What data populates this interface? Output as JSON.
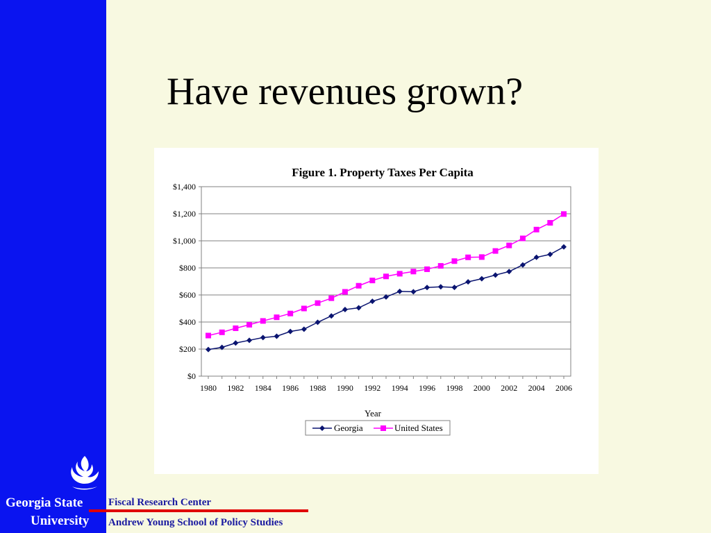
{
  "slide": {
    "title": "Have revenues grown?",
    "university_line1": "Georgia State",
    "university_line2": "University",
    "footer_center": "Fiscal Research Center",
    "footer_school": "Andrew Young School of Policy Studies"
  },
  "colors": {
    "sidebar": "#0a14f0",
    "background": "#f8f9e1",
    "footer_text": "#1a1aa0",
    "footer_rule": "#e00000",
    "georgia": "#0a1470",
    "united_states": "#ff00ff"
  },
  "chart_data": {
    "type": "line",
    "title": "Figure 1. Property Taxes Per Capita",
    "xlabel": "Year",
    "ylabel": "",
    "x": [
      1980,
      1981,
      1982,
      1983,
      1984,
      1985,
      1986,
      1987,
      1988,
      1989,
      1990,
      1991,
      1992,
      1993,
      1994,
      1995,
      1996,
      1997,
      1998,
      1999,
      2000,
      2001,
      2002,
      2003,
      2004,
      2005,
      2006
    ],
    "x_ticks": [
      1980,
      1982,
      1984,
      1986,
      1988,
      1990,
      1992,
      1994,
      1996,
      1998,
      2000,
      2002,
      2004,
      2006
    ],
    "ylim": [
      0,
      1400
    ],
    "y_ticks": [
      0,
      200,
      400,
      600,
      800,
      1000,
      1200,
      1400
    ],
    "y_tick_labels": [
      "$0",
      "$200",
      "$400",
      "$600",
      "$800",
      "$1,000",
      "$1,200",
      "$1,400"
    ],
    "grid": "horizontal",
    "legend_position": "bottom",
    "series": [
      {
        "name": "Georgia",
        "marker": "diamond",
        "values": [
          197,
          213,
          245,
          265,
          285,
          295,
          330,
          347,
          398,
          445,
          492,
          505,
          553,
          585,
          626,
          624,
          655,
          660,
          656,
          697,
          720,
          747,
          773,
          822,
          878,
          900,
          955
        ]
      },
      {
        "name": "United States",
        "marker": "square",
        "values": [
          300,
          324,
          354,
          380,
          408,
          435,
          463,
          500,
          540,
          576,
          623,
          668,
          707,
          737,
          757,
          773,
          790,
          815,
          850,
          878,
          880,
          925,
          966,
          1018,
          1083,
          1133,
          1198
        ]
      }
    ]
  }
}
